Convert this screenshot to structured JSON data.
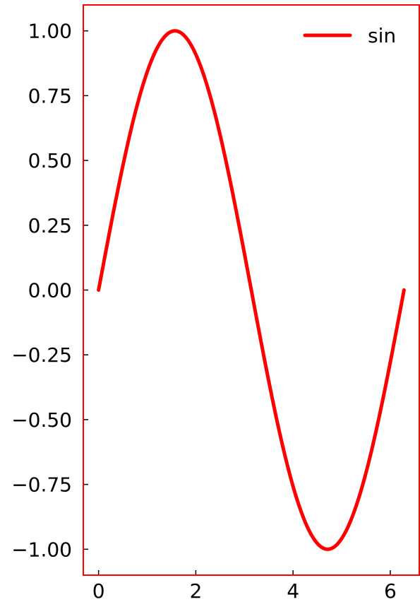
{
  "chart_data": {
    "type": "line",
    "title": "",
    "xlabel": "",
    "ylabel": "",
    "xlim": [
      -0.31416,
      6.59734
    ],
    "ylim": [
      -1.1,
      1.1
    ],
    "x_ticks": [
      0,
      2,
      4,
      6
    ],
    "x_tick_labels": [
      "0",
      "2",
      "4",
      "6"
    ],
    "y_ticks": [
      1.0,
      0.75,
      0.5,
      0.25,
      0.0,
      -0.25,
      -0.5,
      -0.75,
      -1.0
    ],
    "y_tick_labels": [
      "1.00",
      "0.75",
      "0.50",
      "0.25",
      "0.00",
      "−0.25",
      "−0.50",
      "−0.75",
      "−1.00"
    ],
    "grid": false,
    "legend_position": "top-right",
    "spine_color": "#ff0000",
    "series": [
      {
        "name": "sin",
        "function": "sin",
        "color": "#ff0000",
        "x": [
          0,
          0.25,
          0.5,
          0.75,
          1.0,
          1.25,
          1.5,
          1.5708,
          1.75,
          2.0,
          2.25,
          2.5,
          2.75,
          3.0,
          3.1416,
          3.25,
          3.5,
          3.75,
          4.0,
          4.25,
          4.5,
          4.7124,
          4.75,
          5.0,
          5.25,
          5.5,
          5.75,
          6.0,
          6.2832
        ],
        "y": [
          0.0,
          0.247,
          0.479,
          0.682,
          0.841,
          0.949,
          0.997,
          1.0,
          0.984,
          0.909,
          0.778,
          0.598,
          0.382,
          0.141,
          0.0,
          -0.108,
          -0.351,
          -0.572,
          -0.757,
          -0.895,
          -0.978,
          -1.0,
          -0.999,
          -0.959,
          -0.859,
          -0.706,
          -0.508,
          -0.279,
          0.0
        ]
      }
    ]
  }
}
